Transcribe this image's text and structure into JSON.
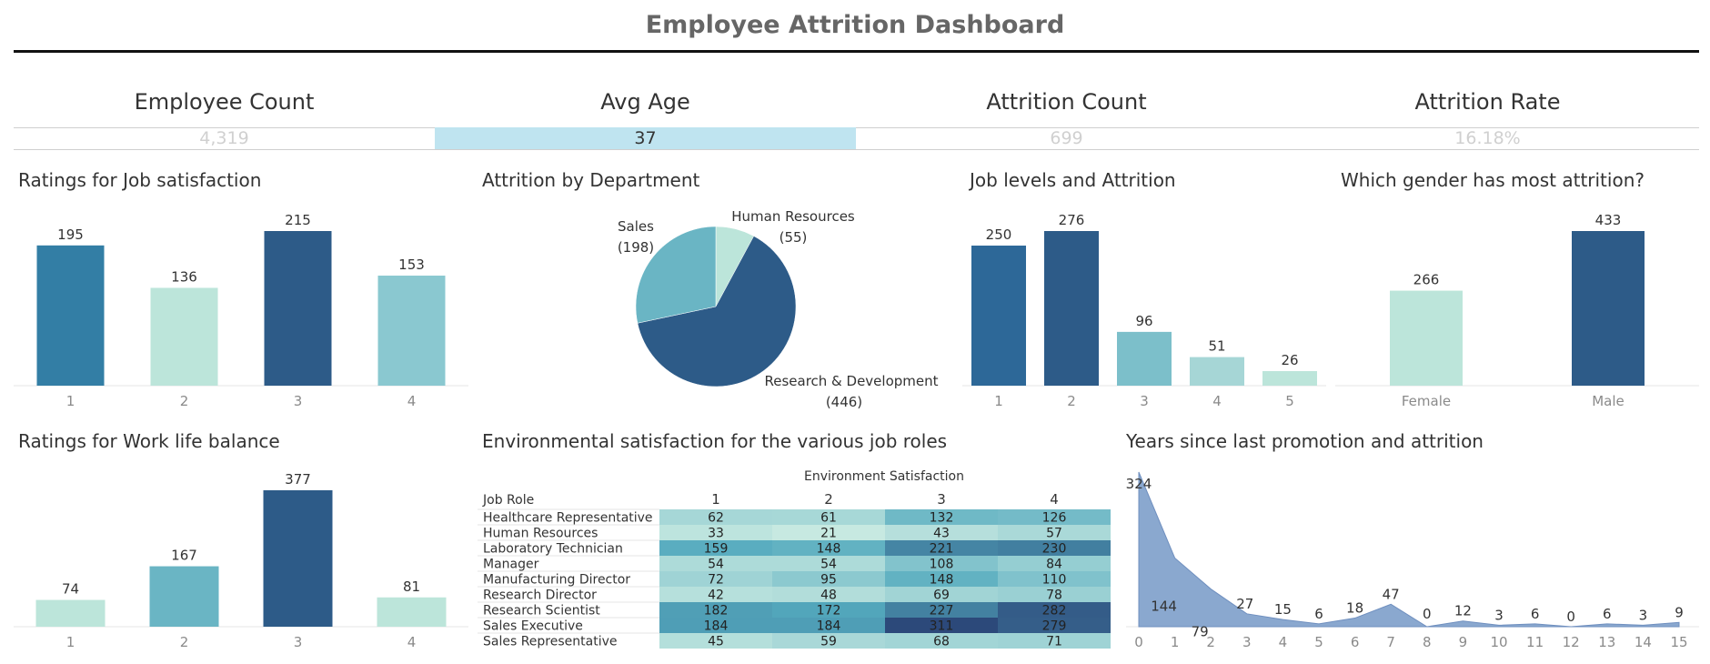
{
  "dashboard": {
    "title": "Employee Attrition Dashboard"
  },
  "kpis": [
    {
      "label": "Employee Count",
      "value": "4,319",
      "highlight": false
    },
    {
      "label": "Avg Age",
      "value": "37",
      "highlight": true
    },
    {
      "label": "Attrition Count",
      "value": "699",
      "highlight": false
    },
    {
      "label": "Attrition Rate",
      "value": "16.18%",
      "highlight": false
    }
  ],
  "colors": {
    "dark": "#2d5b88",
    "mid": "#337ea5",
    "light": "#8ac8d0",
    "mint": "#bce5da",
    "teal": "#6ab5c4",
    "kpi_highlight": "#bfe4f0",
    "area": "#8aa8cf"
  },
  "chart_data": [
    {
      "id": "job-satisfaction",
      "type": "bar",
      "title": "Ratings for Job satisfaction",
      "categories": [
        "1",
        "2",
        "3",
        "4"
      ],
      "values": [
        195,
        136,
        215,
        153
      ],
      "bar_colors": [
        "#337ea5",
        "#bce5da",
        "#2d5b88",
        "#8ac8d0"
      ],
      "ylim": [
        0,
        215
      ]
    },
    {
      "id": "attrition-department",
      "type": "pie",
      "title": "Attrition by Department",
      "slices": [
        {
          "label": "Human Resources",
          "value": 55,
          "value_label": "(55)",
          "color": "#bce5da"
        },
        {
          "label": "Research & Development",
          "value": 446,
          "value_label": "(446)",
          "color": "#2d5b88"
        },
        {
          "label": "Sales",
          "value": 198,
          "value_label": "(198)",
          "color": "#6ab5c4"
        }
      ]
    },
    {
      "id": "job-levels",
      "type": "bar",
      "title": "Job levels and Attrition",
      "categories": [
        "1",
        "2",
        "3",
        "4",
        "5"
      ],
      "values": [
        250,
        276,
        96,
        51,
        26
      ],
      "bar_colors": [
        "#2d6898",
        "#2d5b88",
        "#7cbfca",
        "#a6d6d6",
        "#bce5da"
      ],
      "ylim": [
        0,
        276
      ]
    },
    {
      "id": "gender-attrition",
      "type": "bar",
      "title": "Which gender has most attrition?",
      "categories": [
        "Female",
        "Male"
      ],
      "values": [
        266,
        433
      ],
      "bar_colors": [
        "#bce5da",
        "#2d5b88"
      ],
      "ylim": [
        0,
        433
      ]
    },
    {
      "id": "work-life-balance",
      "type": "bar",
      "title": "Ratings for Work life balance",
      "categories": [
        "1",
        "2",
        "3",
        "4"
      ],
      "values": [
        74,
        167,
        377,
        81
      ],
      "bar_colors": [
        "#bce5da",
        "#6ab5c4",
        "#2d5b88",
        "#bce5da"
      ],
      "ylim": [
        0,
        377
      ]
    },
    {
      "id": "env-satisfaction",
      "type": "heatmap",
      "title": "Environmental satisfaction for the various job roles",
      "column_title": "Environment Satisfaction",
      "row_header": "Job Role",
      "columns": [
        "1",
        "2",
        "3",
        "4"
      ],
      "rows": [
        {
          "role": "Healthcare Representative",
          "values": [
            62,
            61,
            132,
            126
          ]
        },
        {
          "role": "Human Resources",
          "values": [
            33,
            21,
            43,
            57
          ]
        },
        {
          "role": "Laboratory Technician",
          "values": [
            159,
            148,
            221,
            230
          ]
        },
        {
          "role": "Manager",
          "values": [
            54,
            54,
            108,
            84
          ]
        },
        {
          "role": "Manufacturing Director",
          "values": [
            72,
            95,
            148,
            110
          ]
        },
        {
          "role": "Research Director",
          "values": [
            42,
            48,
            69,
            78
          ]
        },
        {
          "role": "Research Scientist",
          "values": [
            182,
            172,
            227,
            282
          ]
        },
        {
          "role": "Sales Executive",
          "values": [
            184,
            184,
            311,
            279
          ]
        },
        {
          "role": "Sales Representative",
          "values": [
            45,
            59,
            68,
            71
          ]
        }
      ],
      "value_range": [
        21,
        311
      ]
    },
    {
      "id": "years-since-promotion",
      "type": "area",
      "title": "Years since last promotion and attrition",
      "x": [
        0,
        1,
        2,
        3,
        4,
        5,
        6,
        7,
        8,
        9,
        10,
        11,
        12,
        13,
        14,
        15
      ],
      "values": [
        324,
        144,
        79,
        27,
        15,
        6,
        18,
        47,
        0,
        12,
        3,
        6,
        0,
        6,
        3,
        9
      ],
      "ylim": [
        0,
        324
      ]
    }
  ]
}
